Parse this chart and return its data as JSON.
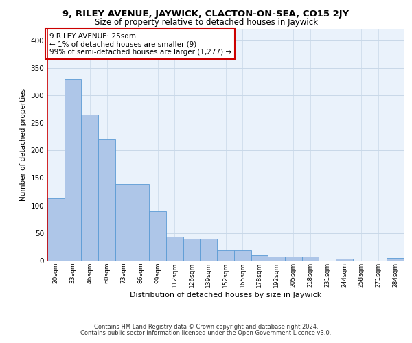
{
  "title_line1": "9, RILEY AVENUE, JAYWICK, CLACTON-ON-SEA, CO15 2JY",
  "title_line2": "Size of property relative to detached houses in Jaywick",
  "xlabel": "Distribution of detached houses by size in Jaywick",
  "ylabel": "Number of detached properties",
  "footer_line1": "Contains HM Land Registry data © Crown copyright and database right 2024.",
  "footer_line2": "Contains public sector information licensed under the Open Government Licence v3.0.",
  "annotation_line1": "9 RILEY AVENUE: 25sqm",
  "annotation_line2": "← 1% of detached houses are smaller (9)",
  "annotation_line3": "99% of semi-detached houses are larger (1,277) →",
  "bar_labels": [
    "20sqm",
    "33sqm",
    "46sqm",
    "60sqm",
    "73sqm",
    "86sqm",
    "99sqm",
    "112sqm",
    "126sqm",
    "139sqm",
    "152sqm",
    "165sqm",
    "178sqm",
    "192sqm",
    "205sqm",
    "218sqm",
    "231sqm",
    "244sqm",
    "258sqm",
    "271sqm",
    "284sqm"
  ],
  "bar_values": [
    113,
    330,
    265,
    220,
    140,
    140,
    90,
    43,
    40,
    40,
    19,
    19,
    10,
    8,
    8,
    8,
    0,
    4,
    0,
    0,
    5
  ],
  "bar_color": "#aec6e8",
  "bar_edge_color": "#5b9bd5",
  "highlight_color": "#cc0000",
  "grid_color": "#c8d8e8",
  "bg_color": "#eaf2fb",
  "annotation_box_color": "#ffffff",
  "annotation_box_edge": "#cc0000",
  "ylim": [
    0,
    420
  ],
  "yticks": [
    0,
    50,
    100,
    150,
    200,
    250,
    300,
    350,
    400
  ]
}
